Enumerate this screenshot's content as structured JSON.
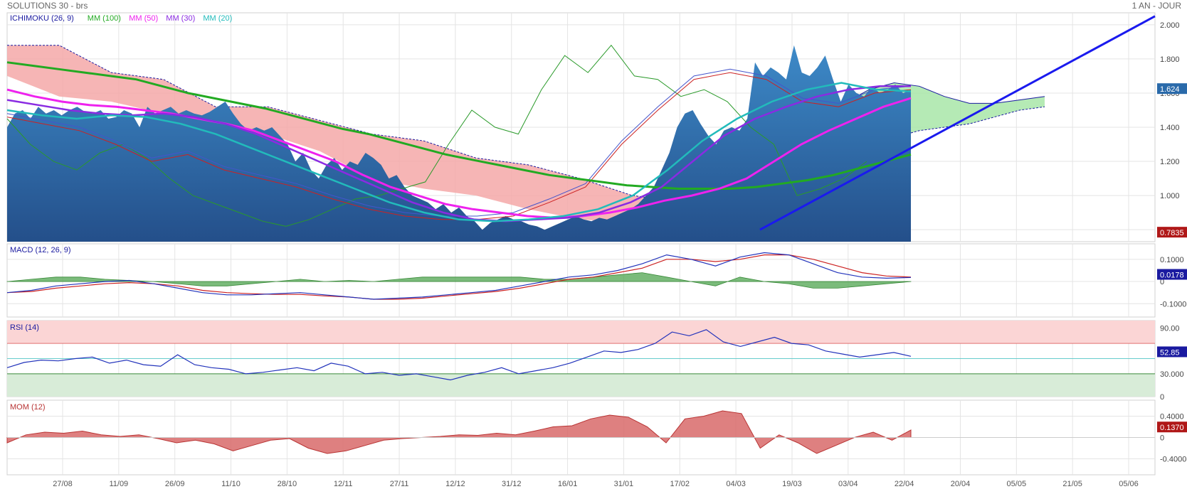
{
  "header": {
    "title": "SOLUTIONS 30 - brs",
    "period": "1 AN - JOUR"
  },
  "colors": {
    "ichimoku": "#1a1aa0",
    "mm100": "#22aa22",
    "mm50": "#ee22ee",
    "mm30": "#8a2be2",
    "mm20": "#22bbbb",
    "price_area": "#2a6aaa",
    "trendline": "#1a1aee",
    "cloud_bear": "#f4a8a8",
    "cloud_bull": "#a8e6a8",
    "macd_line": "#2233bb",
    "signal_line": "#cc2222",
    "macd_hist": "#5aaa5a",
    "rsi_line": "#2233bb",
    "mom": "#cc4444"
  },
  "x_labels": [
    "27/08",
    "11/09",
    "26/09",
    "11/10",
    "28/10",
    "12/11",
    "27/11",
    "12/12",
    "31/12",
    "16/01",
    "31/01",
    "17/02",
    "04/03",
    "19/03",
    "03/04",
    "22/04",
    "20/04",
    "05/05",
    "21/05",
    "05/06"
  ],
  "chart_data": [
    {
      "type": "area",
      "name": "price",
      "legend": [
        {
          "label": "ICHIMOKU (26, 9)",
          "color": "#1a1aa0"
        },
        {
          "label": "MM (100)",
          "color": "#22aa22"
        },
        {
          "label": "MM (50)",
          "color": "#ee22ee"
        },
        {
          "label": "MM (30)",
          "color": "#8a2be2"
        },
        {
          "label": "MM (20)",
          "color": "#22bbbb"
        }
      ],
      "y_ticks": [
        "2.000",
        "1.800",
        "1.600",
        "1.400",
        "1.200",
        "1.000",
        "0.8000"
      ],
      "y_tick_values": [
        2.0,
        1.8,
        1.6,
        1.4,
        1.2,
        1.0,
        0.8
      ],
      "ylim": [
        0.73,
        2.07
      ],
      "last_value": "1.624",
      "low_value": "0.7835",
      "series_price": [
        1.4,
        1.48,
        1.5,
        1.45,
        1.52,
        1.48,
        1.5,
        1.47,
        1.5,
        1.52,
        1.49,
        1.48,
        1.5,
        1.45,
        1.46,
        1.5,
        1.48,
        1.4,
        1.52,
        1.48,
        1.5,
        1.52,
        1.48,
        1.5,
        1.48,
        1.47,
        1.49,
        1.52,
        1.55,
        1.48,
        1.42,
        1.38,
        1.4,
        1.38,
        1.4,
        1.35,
        1.3,
        1.2,
        1.25,
        1.15,
        1.1,
        1.18,
        1.22,
        1.15,
        1.2,
        1.18,
        1.25,
        1.22,
        1.18,
        1.1,
        1.12,
        1.05,
        1.0,
        0.98,
        0.96,
        0.92,
        0.95,
        0.9,
        0.93,
        0.88,
        0.85,
        0.8,
        0.84,
        0.86,
        0.88,
        0.86,
        0.85,
        0.83,
        0.82,
        0.8,
        0.82,
        0.84,
        0.86,
        0.88,
        0.86,
        0.85,
        0.87,
        0.86,
        0.88,
        0.9,
        0.92,
        0.95,
        1.0,
        1.05,
        1.15,
        1.25,
        1.4,
        1.48,
        1.5,
        1.42,
        1.35,
        1.3,
        1.38,
        1.4,
        1.38,
        1.45,
        1.78,
        1.7,
        1.75,
        1.72,
        1.68,
        1.88,
        1.72,
        1.7,
        1.75,
        1.82,
        1.68,
        1.55,
        1.65,
        1.6,
        1.58,
        1.64,
        1.6,
        1.62,
        1.65,
        1.6,
        1.62
      ],
      "series_mm100": [
        1.78,
        1.76,
        1.74,
        1.72,
        1.7,
        1.68,
        1.64,
        1.6,
        1.57,
        1.54,
        1.51,
        1.47,
        1.43,
        1.39,
        1.36,
        1.32,
        1.28,
        1.24,
        1.21,
        1.18,
        1.15,
        1.12,
        1.1,
        1.08,
        1.06,
        1.05,
        1.04,
        1.04,
        1.04,
        1.05,
        1.07,
        1.09,
        1.12,
        1.16,
        1.2,
        1.24
      ],
      "series_mm50": [
        1.62,
        1.58,
        1.55,
        1.53,
        1.52,
        1.5,
        1.48,
        1.45,
        1.42,
        1.38,
        1.32,
        1.26,
        1.2,
        1.12,
        1.05,
        1.0,
        0.95,
        0.92,
        0.9,
        0.88,
        0.87,
        0.88,
        0.9,
        0.93,
        0.97,
        1.0,
        1.04,
        1.1,
        1.2,
        1.3,
        1.38,
        1.45,
        1.52,
        1.57
      ],
      "series_mm30": [
        1.56,
        1.53,
        1.5,
        1.48,
        1.47,
        1.48,
        1.46,
        1.42,
        1.36,
        1.28,
        1.2,
        1.12,
        1.04,
        0.96,
        0.9,
        0.86,
        0.85,
        0.86,
        0.87,
        0.9,
        0.96,
        1.05,
        1.2,
        1.35,
        1.45,
        1.52,
        1.58,
        1.62,
        1.64,
        1.64
      ],
      "series_mm20": [
        1.5,
        1.47,
        1.45,
        1.47,
        1.46,
        1.42,
        1.36,
        1.28,
        1.2,
        1.12,
        1.04,
        0.96,
        0.9,
        0.86,
        0.85,
        0.86,
        0.88,
        0.92,
        1.0,
        1.15,
        1.32,
        1.45,
        1.55,
        1.62,
        1.66,
        1.62,
        1.61
      ],
      "series_ichimoku_lead": [
        1.46,
        1.42,
        1.38,
        1.3,
        1.2,
        1.24,
        1.15,
        1.1,
        1.05,
        0.98,
        0.92,
        0.88,
        0.86,
        0.86,
        0.88,
        0.96,
        1.05,
        1.3,
        1.5,
        1.68,
        1.72,
        1.68,
        1.55,
        1.52,
        1.6,
        1.62
      ],
      "series_lagging_span": [
        1.45,
        1.3,
        1.2,
        1.15,
        1.25,
        1.3,
        1.22,
        1.1,
        1.0,
        0.95,
        0.9,
        0.85,
        0.82,
        0.86,
        0.92,
        0.98,
        1.0,
        1.04,
        1.08,
        1.3,
        1.5,
        1.4,
        1.36,
        1.62,
        1.82,
        1.72,
        1.88,
        1.7,
        1.68,
        1.58,
        1.62,
        1.55,
        1.4,
        1.3,
        1.0,
        1.04,
        1.1,
        1.2
      ],
      "cloud_bear_top": [
        1.88,
        1.88,
        1.72,
        1.68,
        1.52,
        1.52,
        1.44,
        1.36,
        1.32,
        1.22,
        1.18,
        1.1,
        1.0,
        0.96,
        0.92
      ],
      "cloud_bear_bottom": [
        1.7,
        1.58,
        1.55,
        1.48,
        1.4,
        1.36,
        1.26,
        1.1,
        1.04,
        1.0,
        0.92,
        0.86,
        0.84,
        0.88,
        0.92
      ],
      "cloud_bull_top": [
        1.02,
        1.12,
        1.26,
        1.4,
        1.54,
        1.62,
        1.66,
        1.64,
        1.58,
        1.54,
        1.54,
        1.56,
        1.58
      ],
      "cloud_bull_bottom": [
        0.92,
        0.98,
        1.06,
        1.16,
        1.24,
        1.3,
        1.34,
        1.38,
        1.4,
        1.42,
        1.46,
        1.5,
        1.52
      ],
      "trendline": [
        [
          0.833,
          0.8
        ],
        [
          2.0,
          2.05
        ]
      ]
    },
    {
      "type": "line",
      "name": "macd",
      "title": "MACD (12, 26, 9)",
      "y_ticks": [
        "0.1000",
        "0",
        "-0.1000"
      ],
      "y_tick_values": [
        0.1,
        0.0,
        -0.1
      ],
      "ylim": [
        -0.16,
        0.17
      ],
      "last_value": "0.0178",
      "series_macd": [
        -0.05,
        -0.04,
        -0.02,
        -0.01,
        0.0,
        0.005,
        -0.01,
        -0.03,
        -0.05,
        -0.06,
        -0.06,
        -0.055,
        -0.05,
        -0.06,
        -0.07,
        -0.08,
        -0.075,
        -0.07,
        -0.06,
        -0.05,
        -0.04,
        -0.02,
        0.0,
        0.02,
        0.03,
        0.05,
        0.08,
        0.12,
        0.1,
        0.07,
        0.11,
        0.13,
        0.12,
        0.08,
        0.04,
        0.02,
        0.015,
        0.018
      ],
      "series_signal": [
        -0.05,
        -0.045,
        -0.03,
        -0.02,
        -0.01,
        -0.005,
        -0.01,
        -0.02,
        -0.04,
        -0.05,
        -0.055,
        -0.058,
        -0.058,
        -0.065,
        -0.07,
        -0.08,
        -0.08,
        -0.075,
        -0.065,
        -0.055,
        -0.045,
        -0.03,
        -0.01,
        0.01,
        0.02,
        0.04,
        0.06,
        0.1,
        0.1,
        0.09,
        0.1,
        0.12,
        0.12,
        0.1,
        0.07,
        0.04,
        0.025,
        0.02
      ],
      "series_hist": [
        0.0,
        0.01,
        0.02,
        0.02,
        0.01,
        0.005,
        0.0,
        -0.01,
        -0.02,
        -0.02,
        -0.01,
        0.0,
        0.01,
        0.0,
        0.005,
        0.0,
        0.01,
        0.02,
        0.02,
        0.02,
        0.02,
        0.02,
        0.01,
        0.01,
        0.02,
        0.03,
        0.04,
        0.02,
        0.0,
        -0.02,
        0.02,
        0.0,
        -0.01,
        -0.03,
        -0.03,
        -0.02,
        -0.01,
        0.0
      ]
    },
    {
      "type": "line",
      "name": "rsi",
      "title": "RSI (14)",
      "y_ticks": [
        "90.00",
        "30.000",
        "0"
      ],
      "y_tick_values": [
        90,
        30,
        0
      ],
      "ylim": [
        0,
        100
      ],
      "zone_high": [
        70,
        100
      ],
      "zone_low": [
        0,
        30
      ],
      "mid_line": 50,
      "last_value": "52.85",
      "series_rsi": [
        38,
        45,
        48,
        47,
        50,
        52,
        44,
        48,
        42,
        40,
        55,
        42,
        38,
        36,
        30,
        32,
        35,
        38,
        34,
        44,
        40,
        30,
        32,
        28,
        30,
        26,
        22,
        28,
        32,
        38,
        30,
        34,
        38,
        44,
        52,
        60,
        58,
        62,
        70,
        85,
        80,
        88,
        72,
        66,
        72,
        78,
        70,
        68,
        60,
        56,
        52,
        55,
        58,
        53
      ]
    },
    {
      "type": "area",
      "name": "mom",
      "title": "MOM (12)",
      "y_ticks": [
        "0.4000",
        "0",
        "-0.4000"
      ],
      "y_tick_values": [
        0.4,
        0.0,
        -0.4
      ],
      "ylim": [
        -0.7,
        0.7
      ],
      "last_value": "0.1370",
      "series_mom": [
        -0.1,
        0.05,
        0.1,
        0.08,
        0.12,
        0.05,
        0.02,
        0.05,
        -0.02,
        -0.1,
        -0.05,
        -0.12,
        -0.25,
        -0.15,
        -0.05,
        -0.02,
        -0.2,
        -0.3,
        -0.25,
        -0.15,
        -0.05,
        -0.02,
        0.0,
        0.02,
        0.05,
        0.04,
        0.08,
        0.05,
        0.12,
        0.2,
        0.22,
        0.35,
        0.42,
        0.38,
        0.2,
        -0.1,
        0.35,
        0.4,
        0.5,
        0.45,
        -0.2,
        0.05,
        -0.1,
        -0.3,
        -0.15,
        0.0,
        0.1,
        -0.05,
        0.14
      ]
    }
  ]
}
